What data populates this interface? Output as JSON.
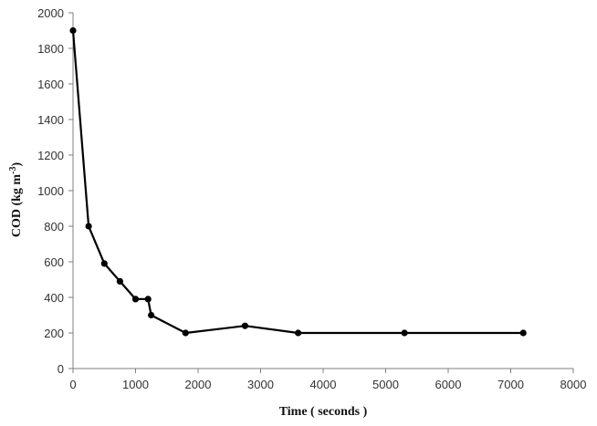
{
  "chart_data": {
    "type": "line",
    "title": "",
    "xlabel": "Time ( seconds )",
    "ylabel": {
      "main": "COD (kg m",
      "superscript": "-3",
      "tail": ")"
    },
    "xlim": [
      0,
      8000
    ],
    "ylim": [
      0,
      2000
    ],
    "xticks": [
      0,
      1000,
      2000,
      3000,
      4000,
      5000,
      6000,
      7000,
      8000
    ],
    "yticks": [
      0,
      200,
      400,
      600,
      800,
      1000,
      1200,
      1400,
      1600,
      1800,
      2000
    ],
    "grid": false,
    "legend": "none",
    "series": [
      {
        "color": "#000000",
        "marker": "circle",
        "x": [
          0,
          250,
          500,
          750,
          1000,
          1200,
          1250,
          1800,
          2750,
          3600,
          5300,
          7200
        ],
        "y": [
          1900,
          800,
          590,
          490,
          390,
          390,
          300,
          200,
          240,
          200,
          200,
          200
        ]
      }
    ]
  }
}
